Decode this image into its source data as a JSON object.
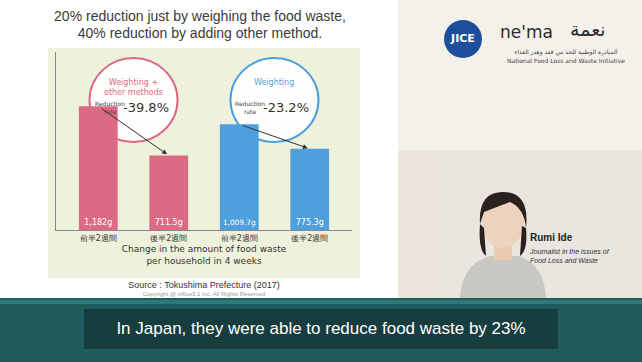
{
  "chart_data": {
    "type": "bar",
    "title": "20% reduction just by weighing the food waste,\n40% reduction by adding other method.",
    "x_label": "Change in the amount of food waste\nper household in 4 weeks",
    "categories": [
      "前半2週間",
      "後半2週間",
      "前半2週間",
      "後半2週間"
    ],
    "values": [
      1182,
      711.5,
      1009.7,
      775.3
    ],
    "value_labels": [
      "1,182g",
      "711.5g",
      "1,009.7g",
      "775.3g"
    ],
    "colors": [
      "#dc6a84",
      "#dc6a84",
      "#4f9fdc",
      "#4f9fdc"
    ],
    "data_labels": true,
    "ylim": [
      0,
      1700
    ],
    "tick_labels": "x",
    "grid": false,
    "annotations": [
      {
        "title": "Weighting +\nother methods",
        "label": "Reduction\nrate",
        "text": "-39.8%",
        "color": "#dc6a84",
        "from": 0,
        "to": 1
      },
      {
        "title": "Weighting",
        "label": "Reduction\nrate",
        "text": "-23.2%",
        "color": "#4f9fdc",
        "from": 2,
        "to": 3
      }
    ]
  },
  "slide": {
    "source": "Source : Tokushima Prefecture (2017)",
    "copyright": "Copyright @ office3.1 inc. All Rights Reserved"
  },
  "logos": {
    "jice": "JICE",
    "nema": "ne'ma",
    "nema_arabic": "نعمة",
    "initiative_arabic": "المبادرة الوطنية للحد من فقد وهدر الغذاء",
    "initiative": "National Food Loss and Waste Initiative"
  },
  "speaker": {
    "name": "Rumi Ide",
    "role": "Journalist in the issues of\nFood Loss and Waste"
  },
  "caption": "In Japan, they were able to reduce food waste by 23%"
}
